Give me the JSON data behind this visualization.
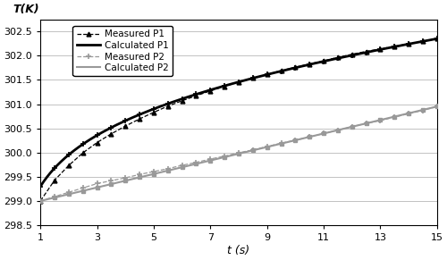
{
  "xlabel": "t (s)",
  "ylabel": "T(K)",
  "xlim": [
    1,
    15
  ],
  "ylim": [
    298.5,
    302.75
  ],
  "yticks": [
    298.5,
    299,
    299.5,
    300,
    300.5,
    301,
    301.5,
    302,
    302.5
  ],
  "xticks": [
    1,
    3,
    5,
    7,
    9,
    11,
    13,
    15
  ],
  "color_black": "#000000",
  "color_gray": "#999999",
  "background": "#ffffff",
  "legend_order": [
    "Measured P1",
    "Calculated P1",
    "Measured P2",
    "Calculated P2"
  ]
}
